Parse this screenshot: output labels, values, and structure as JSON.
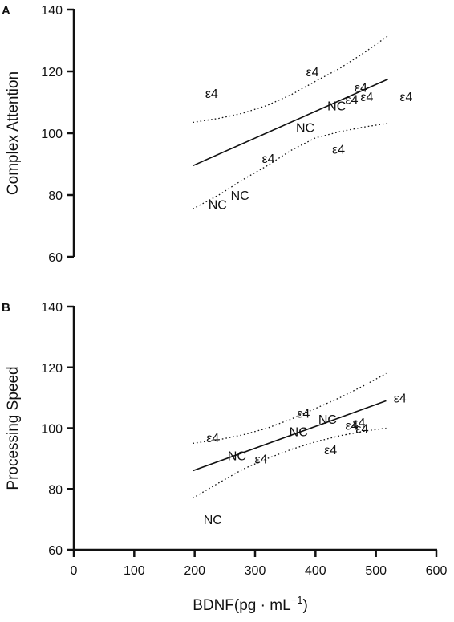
{
  "chart_data": [
    {
      "type": "scatter",
      "panel_label": "A",
      "ylabel": "Complex Attention",
      "xlabel": "",
      "ylim": [
        60,
        140
      ],
      "yticks": [
        60,
        80,
        100,
        120,
        140
      ],
      "xlim": [
        0,
        600
      ],
      "xticks": [],
      "grid": false,
      "points": [
        {
          "x": 228,
          "y": 113,
          "label": "ε4"
        },
        {
          "x": 395,
          "y": 120,
          "label": "ε4"
        },
        {
          "x": 475,
          "y": 115,
          "label": "ε4"
        },
        {
          "x": 460,
          "y": 111,
          "label": "ε4"
        },
        {
          "x": 485,
          "y": 112,
          "label": "ε4"
        },
        {
          "x": 550,
          "y": 112,
          "label": "ε4"
        },
        {
          "x": 435,
          "y": 109,
          "label": "NC"
        },
        {
          "x": 383,
          "y": 102,
          "label": "NC"
        },
        {
          "x": 322,
          "y": 92,
          "label": "ε4"
        },
        {
          "x": 438,
          "y": 95,
          "label": "ε4"
        },
        {
          "x": 275,
          "y": 80,
          "label": "NC"
        },
        {
          "x": 238,
          "y": 77,
          "label": "NC"
        }
      ],
      "fit": {
        "x": [
          197,
          520
        ],
        "y": [
          89.5,
          117.5
        ]
      },
      "ci_upper": {
        "x": [
          197,
          240,
          280,
          320,
          360,
          400,
          440,
          480,
          520
        ],
        "y": [
          103.5,
          104.8,
          106.5,
          109.0,
          112.5,
          116.8,
          121.0,
          126.0,
          131.5
        ]
      },
      "ci_lower": {
        "x": [
          197,
          240,
          280,
          320,
          360,
          400,
          440,
          480,
          520
        ],
        "y": [
          75.5,
          80.0,
          85.0,
          89.5,
          94.5,
          98.5,
          100.5,
          102.0,
          103.2
        ]
      }
    },
    {
      "type": "scatter",
      "panel_label": "B",
      "ylabel": "Processing Speed",
      "xlabel": "BDNF(pg · mL",
      "xlabel_sup": "−1",
      "xlabel_end": ")",
      "ylim": [
        60,
        140
      ],
      "yticks": [
        60,
        80,
        100,
        120,
        140
      ],
      "xlim": [
        0,
        600
      ],
      "xticks": [
        0,
        100,
        200,
        300,
        400,
        500,
        600
      ],
      "grid": false,
      "points": [
        {
          "x": 230,
          "y": 97,
          "label": "ε4"
        },
        {
          "x": 540,
          "y": 110,
          "label": "ε4"
        },
        {
          "x": 380,
          "y": 105,
          "label": "ε4"
        },
        {
          "x": 420,
          "y": 103,
          "label": "NC"
        },
        {
          "x": 472,
          "y": 102,
          "label": "ε4"
        },
        {
          "x": 460,
          "y": 101,
          "label": "ε4"
        },
        {
          "x": 477,
          "y": 100,
          "label": "ε4"
        },
        {
          "x": 372,
          "y": 99,
          "label": "NC"
        },
        {
          "x": 270,
          "y": 91,
          "label": "NC"
        },
        {
          "x": 310,
          "y": 90,
          "label": "ε4"
        },
        {
          "x": 425,
          "y": 93,
          "label": "ε4"
        },
        {
          "x": 230,
          "y": 70,
          "label": "NC"
        }
      ],
      "fit": {
        "x": [
          197,
          517
        ],
        "y": [
          86,
          109
        ]
      },
      "ci_upper": {
        "x": [
          197,
          240,
          280,
          320,
          360,
          400,
          440,
          480,
          517
        ],
        "y": [
          95,
          96.2,
          97.8,
          100.0,
          103.0,
          106.5,
          110.0,
          114.0,
          118.0
        ]
      },
      "ci_lower": {
        "x": [
          197,
          240,
          280,
          320,
          360,
          400,
          440,
          480,
          517
        ],
        "y": [
          77,
          82.0,
          86.5,
          90.0,
          93.0,
          95.5,
          97.5,
          99.0,
          100.0
        ]
      }
    }
  ]
}
